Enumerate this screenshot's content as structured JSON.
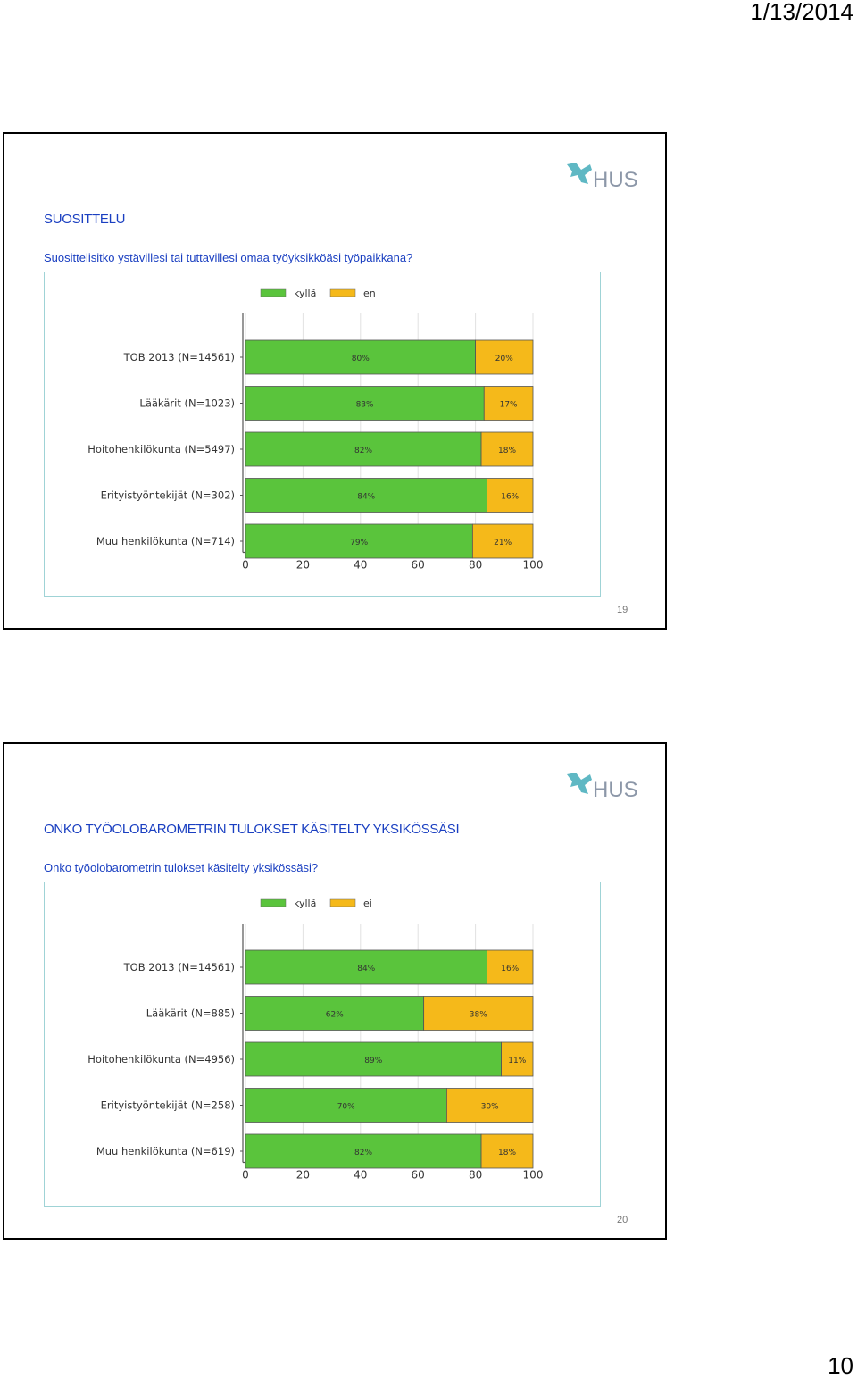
{
  "page": {
    "date": "1/13/2014",
    "page_number": "10"
  },
  "brand": {
    "logo_text": "HUS",
    "colors": {
      "green": "#5ac43c",
      "yellow": "#f5b91a",
      "teal": "#5fb8c4",
      "text_blue": "#1a3fc1"
    }
  },
  "slides": [
    {
      "heading": "SUOSITTELU",
      "question": "Suosittelisitko ystävillesi tai tuttavillesi omaa työyksikköäsi työpaikkana?",
      "slide_number": "19",
      "chart_data": {
        "type": "bar",
        "orientation": "horizontal",
        "stacked": true,
        "percent_stacked": true,
        "categories": [
          "TOB 2013 (N=14561)",
          "Lääkärit (N=1023)",
          "Hoitohenkilökunta (N=5497)",
          "Erityistyöntekijät (N=302)",
          "Muu henkilökunta (N=714)"
        ],
        "series": [
          {
            "name": "kyllä",
            "color": "#5ac43c",
            "values": [
              80,
              83,
              82,
              84,
              79
            ],
            "labels": [
              "80%",
              "83%",
              "82%",
              "84%",
              "79%"
            ]
          },
          {
            "name": "en",
            "color": "#f5b91a",
            "values": [
              20,
              17,
              18,
              16,
              21
            ],
            "labels": [
              "20%",
              "17%",
              "18%",
              "16%",
              "21%"
            ]
          }
        ],
        "xlim": [
          0,
          100
        ],
        "xticks": [
          "0",
          "20",
          "40",
          "60",
          "80",
          "100"
        ],
        "grid": true,
        "legend": "top"
      }
    },
    {
      "heading": "ONKO TYÖOLOBAROMETRIN TULOKSET KÄSITELTY YKSIKÖSSÄSI",
      "question": "Onko työolobarometrin tulokset käsitelty yksikössäsi?",
      "slide_number": "20",
      "chart_data": {
        "type": "bar",
        "orientation": "horizontal",
        "stacked": true,
        "percent_stacked": true,
        "categories": [
          "TOB 2013 (N=14561)",
          "Lääkärit (N=885)",
          "Hoitohenkilökunta (N=4956)",
          "Erityistyöntekijät (N=258)",
          "Muu henkilökunta (N=619)"
        ],
        "series": [
          {
            "name": "kyllä",
            "color": "#5ac43c",
            "values": [
              84,
              62,
              89,
              70,
              82
            ],
            "labels": [
              "84%",
              "62%",
              "89%",
              "70%",
              "82%"
            ]
          },
          {
            "name": "ei",
            "color": "#f5b91a",
            "values": [
              16,
              38,
              11,
              30,
              18
            ],
            "labels": [
              "16%",
              "38%",
              "11%",
              "30%",
              "18%"
            ]
          }
        ],
        "xlim": [
          0,
          100
        ],
        "xticks": [
          "0",
          "20",
          "40",
          "60",
          "80",
          "100"
        ],
        "grid": true,
        "legend": "top"
      }
    }
  ]
}
